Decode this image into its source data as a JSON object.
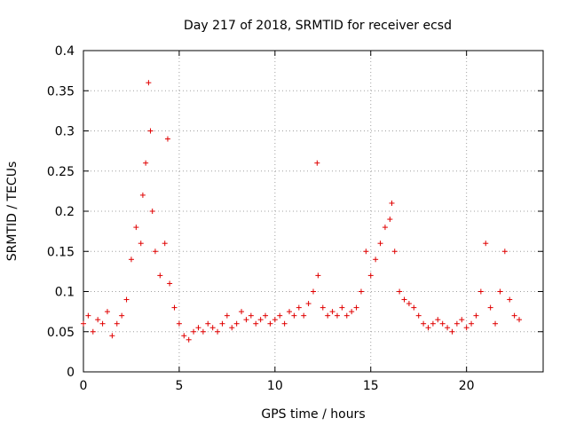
{
  "chart_data": {
    "type": "scatter",
    "title": "Day 217 of 2018, SRMTID for receiver ecsd",
    "xlabel": "GPS time / hours",
    "ylabel": "SRMTID / TECUs",
    "xlim": [
      0,
      24
    ],
    "ylim": [
      0,
      0.4
    ],
    "x_ticks": [
      "0",
      "5",
      "10",
      "15",
      "20"
    ],
    "y_ticks": [
      "0",
      "0.05",
      "0.1",
      "0.15",
      "0.2",
      "0.25",
      "0.3",
      "0.35",
      "0.4"
    ],
    "grid": true,
    "marker": "+",
    "color": "#e00000",
    "series": [
      {
        "name": "SRMTID",
        "x": [
          0.0,
          0.25,
          0.5,
          0.75,
          1.0,
          1.25,
          1.5,
          1.75,
          2.0,
          2.25,
          2.5,
          2.75,
          3.0,
          3.1,
          3.25,
          3.4,
          3.5,
          3.6,
          3.75,
          4.0,
          4.25,
          4.4,
          4.5,
          4.75,
          5.0,
          5.25,
          5.5,
          5.75,
          6.0,
          6.25,
          6.5,
          6.75,
          7.0,
          7.25,
          7.5,
          7.75,
          8.0,
          8.25,
          8.5,
          8.75,
          9.0,
          9.25,
          9.5,
          9.75,
          10.0,
          10.25,
          10.5,
          10.75,
          11.0,
          11.25,
          11.5,
          11.75,
          12.0,
          12.2,
          12.25,
          12.5,
          12.75,
          13.0,
          13.25,
          13.5,
          13.75,
          14.0,
          14.25,
          14.5,
          14.75,
          15.0,
          15.25,
          15.5,
          15.75,
          16.0,
          16.1,
          16.25,
          16.5,
          16.75,
          17.0,
          17.25,
          17.5,
          17.75,
          18.0,
          18.25,
          18.5,
          18.75,
          19.0,
          19.25,
          19.5,
          19.75,
          20.0,
          20.25,
          20.5,
          20.75,
          21.0,
          21.25,
          21.5,
          21.75,
          22.0,
          22.25,
          22.5,
          22.75
        ],
        "y": [
          0.06,
          0.07,
          0.05,
          0.065,
          0.06,
          0.075,
          0.045,
          0.06,
          0.07,
          0.09,
          0.14,
          0.18,
          0.16,
          0.22,
          0.26,
          0.36,
          0.3,
          0.2,
          0.15,
          0.12,
          0.16,
          0.29,
          0.11,
          0.08,
          0.06,
          0.045,
          0.04,
          0.05,
          0.055,
          0.05,
          0.06,
          0.055,
          0.05,
          0.06,
          0.07,
          0.055,
          0.06,
          0.075,
          0.065,
          0.07,
          0.06,
          0.065,
          0.07,
          0.06,
          0.065,
          0.07,
          0.06,
          0.075,
          0.07,
          0.08,
          0.07,
          0.085,
          0.1,
          0.26,
          0.12,
          0.08,
          0.07,
          0.075,
          0.07,
          0.08,
          0.07,
          0.075,
          0.08,
          0.1,
          0.15,
          0.12,
          0.14,
          0.16,
          0.18,
          0.19,
          0.21,
          0.15,
          0.1,
          0.09,
          0.085,
          0.08,
          0.07,
          0.06,
          0.055,
          0.06,
          0.065,
          0.06,
          0.055,
          0.05,
          0.06,
          0.065,
          0.055,
          0.06,
          0.07,
          0.1,
          0.16,
          0.08,
          0.06,
          0.1,
          0.15,
          0.09,
          0.07,
          0.065
        ]
      }
    ]
  }
}
